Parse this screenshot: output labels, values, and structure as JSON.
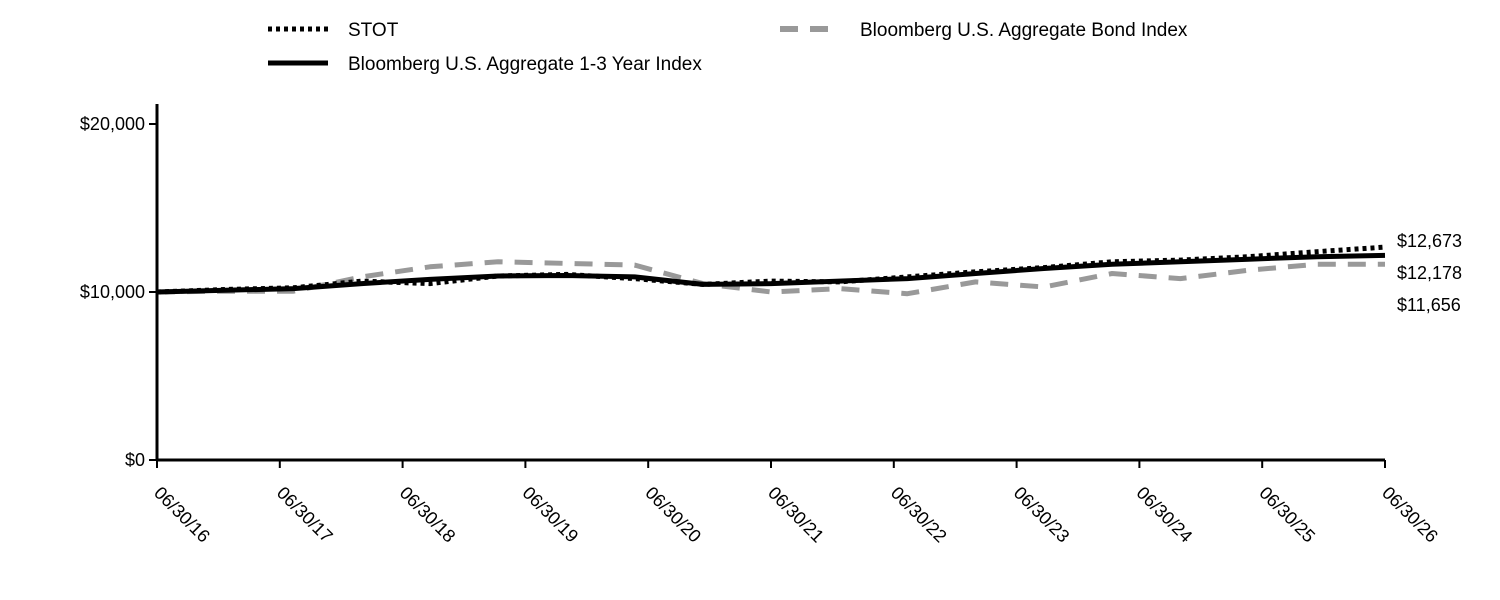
{
  "chart_data": {
    "type": "line",
    "title": "",
    "xlabel": "",
    "ylabel": "",
    "x_ticks": [
      "06/30/16",
      "06/30/17",
      "06/30/18",
      "06/30/19",
      "06/30/20",
      "06/30/21",
      "06/30/22",
      "06/30/23",
      "06/30/24",
      "06/30/25",
      "06/30/26"
    ],
    "y_ticks": [
      "$0",
      "$10,000",
      "$20,000"
    ],
    "ylim": [
      0,
      20000
    ],
    "grid": false,
    "legend_position": "top",
    "series": [
      {
        "name": "STOT",
        "style": "dotted",
        "color": "#000000",
        "end_label": "$12,673",
        "values": [
          10000,
          10150,
          10250,
          10650,
          10500,
          10950,
          11050,
          10800,
          10450,
          10650,
          10600,
          10900,
          11200,
          11450,
          11800,
          11900,
          12100,
          12400,
          12673
        ]
      },
      {
        "name": "Bloomberg U.S. Aggregate Bond Index",
        "style": "dashed",
        "color": "#999999",
        "end_label": "$11,656",
        "values": [
          10000,
          10050,
          10050,
          10900,
          11500,
          11800,
          11700,
          11600,
          10500,
          10000,
          10200,
          9900,
          10600,
          10300,
          11100,
          10800,
          11300,
          11650,
          11656
        ]
      },
      {
        "name": "Bloomberg U.S. Aggregate 1-3 Year Index",
        "style": "solid",
        "color": "#000000",
        "end_label": "$12,178",
        "values": [
          10000,
          10100,
          10200,
          10500,
          10750,
          10950,
          10980,
          10900,
          10450,
          10500,
          10650,
          10800,
          11100,
          11400,
          11650,
          11800,
          11950,
          12100,
          12178
        ]
      }
    ]
  }
}
